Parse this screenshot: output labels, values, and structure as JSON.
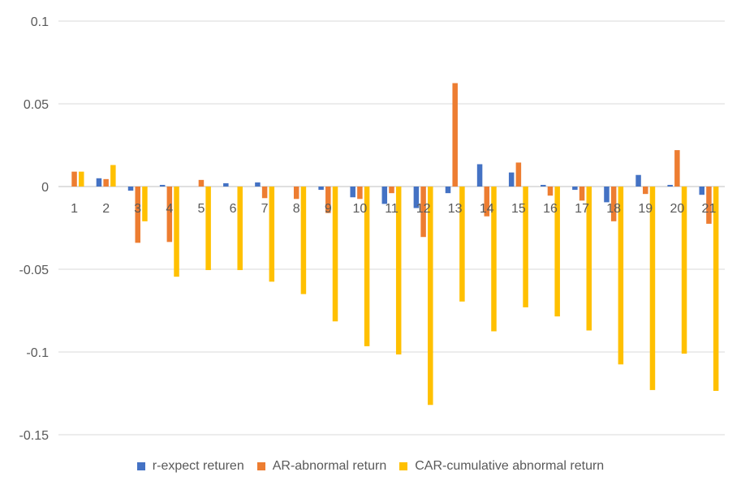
{
  "chart_data": {
    "type": "bar",
    "categories": [
      "1",
      "2",
      "3",
      "4",
      "5",
      "6",
      "7",
      "8",
      "9",
      "10",
      "11",
      "12",
      "13",
      "14",
      "15",
      "16",
      "17",
      "18",
      "19",
      "20",
      "21"
    ],
    "series": [
      {
        "name": "r-expect returen",
        "color": "#4472C4",
        "values": [
          0.0,
          0.005,
          -0.0025,
          0.001,
          0.0,
          0.002,
          0.0025,
          0.0,
          -0.002,
          -0.0065,
          -0.0105,
          -0.013,
          -0.004,
          0.0135,
          0.0085,
          0.001,
          -0.002,
          -0.0095,
          0.007,
          0.001,
          -0.005
        ]
      },
      {
        "name": "AR-abnormal return",
        "color": "#ED7D31",
        "values": [
          0.009,
          0.0045,
          -0.034,
          -0.0335,
          0.004,
          0.0,
          -0.007,
          -0.0075,
          -0.016,
          -0.0075,
          -0.004,
          -0.0305,
          0.0625,
          -0.018,
          0.0145,
          -0.0055,
          -0.0085,
          -0.021,
          -0.0045,
          0.022,
          -0.0225
        ]
      },
      {
        "name": "CAR-cumulative abnormal return",
        "color": "#FFC000",
        "values": [
          0.009,
          0.013,
          -0.021,
          -0.0545,
          -0.0505,
          -0.0505,
          -0.0575,
          -0.065,
          -0.0815,
          -0.0965,
          -0.1015,
          -0.132,
          -0.0695,
          -0.0875,
          -0.073,
          -0.0785,
          -0.087,
          -0.1075,
          -0.123,
          -0.101,
          -0.1235
        ]
      }
    ],
    "y_ticks": [
      "0.1",
      "0.05",
      "0",
      "-0.05",
      "-0.1",
      "-0.15"
    ],
    "ylim": [
      -0.15,
      0.1
    ],
    "title": "",
    "xlabel": "",
    "ylabel": "",
    "grid": true,
    "legend_position": "bottom"
  }
}
